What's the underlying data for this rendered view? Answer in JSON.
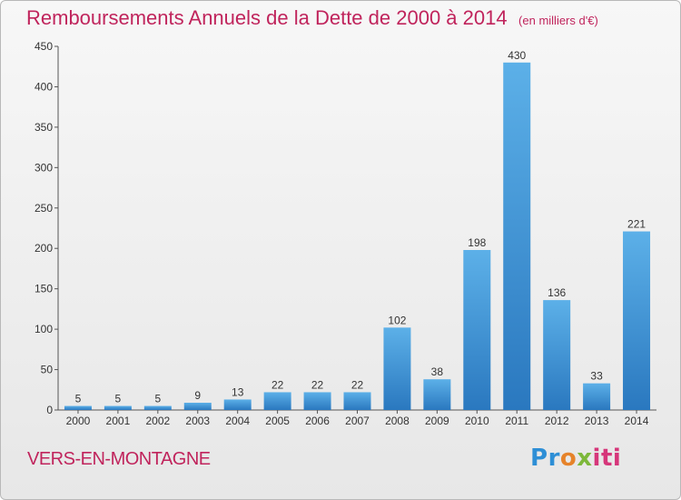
{
  "header": {
    "title": "Remboursements Annuels de la Dette de 2000 à 2014",
    "unit": "(en milliers d'€)"
  },
  "footer": {
    "commune": "VERS-EN-MONTAGNE",
    "logo": "Proxiti"
  },
  "colors": {
    "title": "#c0245c",
    "bar_light": "#5cb0e8",
    "bar_dark": "#2a78bf",
    "axis": "#555555",
    "grid": "#d0d0d0"
  },
  "chart_data": {
    "type": "bar",
    "categories": [
      "2000",
      "2001",
      "2002",
      "2003",
      "2004",
      "2005",
      "2006",
      "2007",
      "2008",
      "2009",
      "2010",
      "2011",
      "2012",
      "2013",
      "2014"
    ],
    "values": [
      5,
      5,
      5,
      9,
      13,
      22,
      22,
      22,
      102,
      38,
      198,
      430,
      136,
      33,
      221
    ],
    "title": "Remboursements Annuels de la Dette de 2000 à 2014",
    "unit": "(en milliers d'€)",
    "xlabel": "",
    "ylabel": "",
    "ylim": [
      0,
      450
    ],
    "yticks": [
      0,
      50,
      100,
      150,
      200,
      250,
      300,
      350,
      400,
      450
    ],
    "grid": false,
    "data_labels": true
  }
}
